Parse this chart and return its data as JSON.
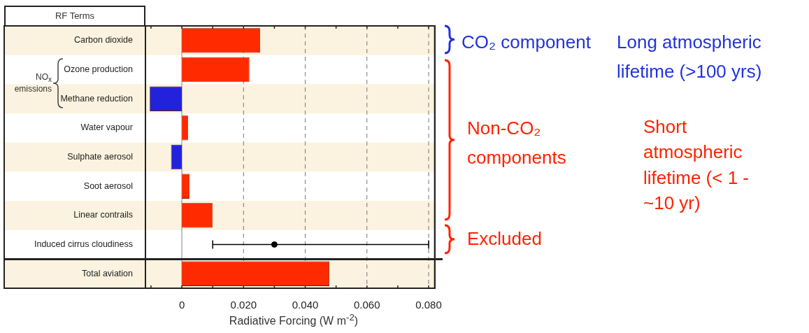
{
  "chart_data": {
    "type": "bar",
    "orientation": "horizontal",
    "ylabel": "RF Terms",
    "xlabel": "Radiative Forcing  (W m$^{-2}$)",
    "categories": [
      "Carbon dioxide",
      "Ozone production",
      "Methane reduction",
      "Water vapour",
      "Sulphate aerosol",
      "Soot aerosol",
      "Linear contrails",
      "Induced cirrus cloudiness",
      "Total aviation"
    ],
    "series": [
      {
        "colors": [
          "#ff2a00",
          "#ff2a00",
          "#2222dd",
          "#ff2a00",
          "#2222dd",
          "#ff2a00",
          "#ff2a00",
          null,
          "#ff2a00"
        ],
        "values": [
          0.0254,
          0.0219,
          -0.0104,
          0.002,
          -0.0035,
          0.0025,
          0.01,
          null,
          0.0478
        ]
      },
      {
        "type": "scatter",
        "color": "#000000",
        "marker": "circle",
        "values": [
          null,
          null,
          null,
          null,
          null,
          null,
          null,
          0.03,
          null
        ],
        "errors": [
          null,
          null,
          null,
          null,
          null,
          null,
          null,
          [
            0.01,
            0.08
          ],
          null
        ]
      }
    ],
    "xlim": [
      -0.0118,
      0.082
    ],
    "xticks": [
      {
        "value": -0.01,
        "label": null
      },
      0,
      {
        "value": 0.01,
        "label": null
      },
      {
        "value": 0.02,
        "label": "0.020"
      },
      {
        "value": 0.03,
        "label": null
      },
      {
        "value": 0.04,
        "label": "0.040"
      },
      {
        "value": 0.05,
        "label": null
      },
      {
        "value": 0.06,
        "label": "0.060"
      },
      {
        "value": 0.07,
        "label": null
      },
      {
        "value": 0.08,
        "label": "0.080"
      }
    ],
    "grid": "x",
    "line_style": "dashed",
    "legend": false,
    "annotations": [
      "NO$_{x}$ emissions",
      "CO₂ component",
      "Long atmospheric lifetime (>100 yrs)",
      "Non-CO₂ components",
      "Short atmospheric lifetime (< 1 - ~10 yr)",
      "Excluded"
    ]
  }
}
